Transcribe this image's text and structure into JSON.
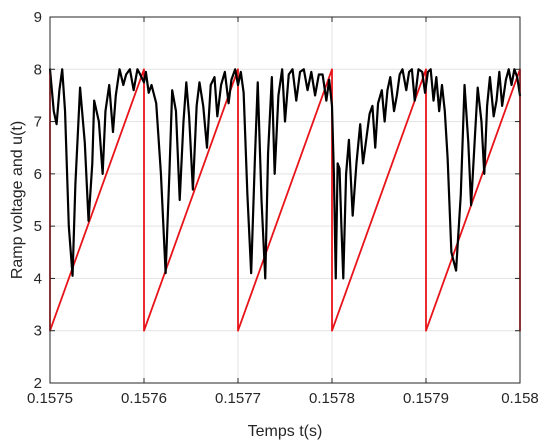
{
  "chart_data": {
    "type": "line",
    "title": "",
    "xlabel": "Temps t(s)",
    "ylabel": "Ramp voltage and u(t)",
    "xlim": [
      0.1575,
      0.158
    ],
    "ylim": [
      2,
      9
    ],
    "x_ticks": [
      0.1575,
      0.1576,
      0.1577,
      0.1578,
      0.1579,
      0.158
    ],
    "x_tick_labels": [
      "0.1575",
      "0.1576",
      "0.1577",
      "0.1578",
      "0.1579",
      "0.158"
    ],
    "y_ticks": [
      2,
      3,
      4,
      5,
      6,
      7,
      8,
      9
    ],
    "y_tick_labels": [
      "2",
      "3",
      "4",
      "5",
      "6",
      "7",
      "8",
      "9"
    ],
    "grid": true,
    "legend": "none",
    "colors": {
      "ramp": "#e8141a",
      "u": "#000000",
      "grid": "#e3e3e3",
      "axes": "#262626"
    },
    "series": [
      {
        "key": "ramp",
        "color": "#e8141a",
        "x": [
          0.1575,
          0.1575,
          0.1576,
          0.1576,
          0.1577,
          0.1577,
          0.1578,
          0.1578,
          0.1579,
          0.1579,
          0.158,
          0.158
        ],
        "y": [
          8,
          3,
          8,
          3,
          8,
          3,
          8,
          3,
          8,
          3,
          8,
          3
        ]
      },
      {
        "key": "u",
        "color": "#000000",
        "x": [
          0.1575,
          0.157504,
          0.157507,
          0.15751,
          0.157513,
          0.157516,
          0.15752,
          0.157524,
          0.157527,
          0.157532,
          0.157537,
          0.157541,
          0.157545,
          0.157547,
          0.157552,
          0.157556,
          0.157559,
          0.157563,
          0.157567,
          0.15757,
          0.157574,
          0.157578,
          0.157581,
          0.157585,
          0.157589,
          0.157593,
          0.157596,
          0.1576,
          0.157602,
          0.157605,
          0.157608,
          0.157613,
          0.157618,
          0.157623,
          0.157627,
          0.15763,
          0.157634,
          0.157638,
          0.157642,
          0.157645,
          0.157648,
          0.157652,
          0.157656,
          0.157659,
          0.157663,
          0.157667,
          0.157671,
          0.157675,
          0.157678,
          0.157682,
          0.157686,
          0.15769,
          0.157693,
          0.157697,
          0.1577,
          0.157703,
          0.157706,
          0.15771,
          0.157714,
          0.157718,
          0.157721,
          0.157725,
          0.157729,
          0.157732,
          0.157736,
          0.157739,
          0.157743,
          0.157747,
          0.15775,
          0.157754,
          0.157758,
          0.157762,
          0.157766,
          0.15777,
          0.157774,
          0.157778,
          0.157782,
          0.157786,
          0.15779,
          0.157794,
          0.157797,
          0.1578,
          0.157802,
          0.157804,
          0.157806,
          0.157808,
          0.15781,
          0.157812,
          0.157815,
          0.157818,
          0.157822,
          0.157826,
          0.15783,
          0.157833,
          0.157836,
          0.15784,
          0.157843,
          0.157846,
          0.157849,
          0.157853,
          0.157856,
          0.157859,
          0.157862,
          0.157866,
          0.157869,
          0.157872,
          0.157875,
          0.157879,
          0.157882,
          0.157885,
          0.157888,
          0.157892,
          0.157896,
          0.157899,
          0.157902,
          0.157905,
          0.157908,
          0.157911,
          0.157914,
          0.157917,
          0.15792,
          0.157923,
          0.157927,
          0.157932,
          0.157937,
          0.157941,
          0.157945,
          0.157948,
          0.157952,
          0.157955,
          0.157959,
          0.157962,
          0.157965,
          0.157968,
          0.157972,
          0.157975,
          0.157978,
          0.157981,
          0.157985,
          0.157988,
          0.157991,
          0.157994,
          0.157997,
          0.158
        ],
        "y": [
          8.0,
          7.2,
          6.95,
          7.6,
          8.0,
          7.2,
          5.0,
          4.05,
          5.8,
          7.65,
          6.6,
          5.1,
          6.2,
          7.4,
          7.0,
          6.0,
          7.2,
          7.7,
          6.8,
          7.5,
          8.0,
          7.7,
          7.9,
          8.0,
          7.6,
          8.0,
          7.9,
          7.75,
          7.95,
          7.55,
          7.7,
          7.35,
          6.0,
          4.1,
          6.0,
          7.6,
          7.2,
          5.5,
          7.0,
          7.75,
          7.1,
          5.7,
          7.3,
          7.75,
          7.3,
          6.5,
          7.7,
          7.85,
          7.1,
          7.7,
          7.95,
          7.35,
          7.8,
          8.0,
          7.7,
          7.95,
          7.55,
          5.6,
          4.1,
          6.3,
          7.75,
          5.5,
          4.0,
          6.4,
          7.85,
          6.0,
          7.5,
          8.0,
          7.0,
          7.9,
          8.0,
          7.4,
          7.95,
          8.0,
          7.6,
          7.95,
          7.5,
          7.9,
          7.9,
          7.4,
          7.8,
          7.3,
          6.0,
          4.0,
          6.2,
          6.1,
          5.0,
          4.0,
          6.0,
          6.65,
          5.2,
          6.2,
          6.95,
          6.2,
          6.6,
          7.15,
          7.3,
          6.5,
          7.35,
          7.6,
          7.0,
          7.6,
          7.85,
          7.2,
          7.5,
          7.9,
          8.0,
          7.6,
          7.95,
          8.0,
          7.4,
          8.0,
          7.95,
          7.55,
          7.95,
          8.0,
          7.4,
          7.85,
          7.2,
          7.7,
          7.2,
          6.3,
          4.5,
          4.15,
          5.6,
          7.7,
          6.6,
          5.4,
          6.7,
          7.65,
          7.0,
          6.0,
          7.3,
          7.85,
          7.1,
          7.4,
          7.95,
          7.3,
          7.8,
          8.0,
          7.7,
          8.0,
          7.85,
          7.5
        ]
      }
    ]
  }
}
